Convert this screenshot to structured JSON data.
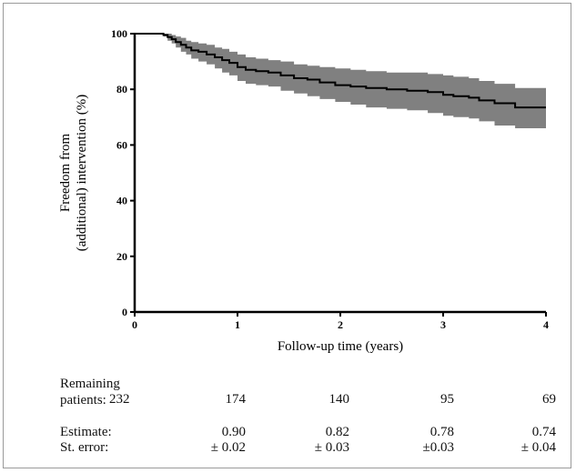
{
  "chart_data": {
    "type": "line",
    "title": "",
    "xlabel": "Follow-up time (years)",
    "ylabel_lines": [
      "Freedom from",
      "(additional) intervention (%)"
    ],
    "xlim": [
      0,
      4
    ],
    "ylim": [
      0,
      100
    ],
    "x_ticks": [
      "0",
      "1",
      "2",
      "3",
      "4"
    ],
    "y_ticks": [
      "0",
      "20",
      "40",
      "60",
      "80",
      "100"
    ],
    "grid": false,
    "series": [
      {
        "style": "step",
        "color": "#000000",
        "x": [
          0,
          0.25,
          0.28,
          0.32,
          0.36,
          0.4,
          0.45,
          0.5,
          0.55,
          0.62,
          0.7,
          0.78,
          0.85,
          0.92,
          1.0,
          1.08,
          1.18,
          1.3,
          1.42,
          1.55,
          1.68,
          1.8,
          1.95,
          2.1,
          2.25,
          2.45,
          2.65,
          2.85,
          3.0,
          3.1,
          3.25,
          3.35,
          3.5,
          3.7,
          4.0
        ],
        "y": [
          100,
          100,
          99.5,
          98.8,
          98,
          97,
          96,
          95,
          94,
          93.5,
          92.5,
          91.5,
          90.5,
          89.5,
          88,
          87,
          86.5,
          86,
          85,
          84,
          83.5,
          82.5,
          81.5,
          81,
          80.5,
          80,
          79.5,
          79,
          78,
          77.5,
          77,
          76,
          75,
          73.5,
          73.5
        ],
        "ci_lower": [
          100,
          100,
          99,
          97.5,
          96.5,
          95,
          93.5,
          92.5,
          91,
          90,
          89,
          87.5,
          86,
          85,
          83,
          82,
          81.5,
          81,
          79.5,
          78.5,
          77.5,
          76.5,
          75.5,
          74.5,
          73.5,
          73,
          72.5,
          71.5,
          70.5,
          70,
          69.5,
          68.5,
          67,
          66,
          66
        ],
        "ci_upper": [
          100,
          100,
          100,
          100,
          99.5,
          99,
          98.5,
          97.5,
          97,
          96.5,
          96,
          95,
          94.5,
          93.5,
          92.5,
          91.5,
          91,
          90.5,
          90,
          89,
          88.5,
          88,
          87.5,
          87,
          86.5,
          86,
          86,
          85.5,
          85,
          84.5,
          84,
          83,
          82,
          80.5,
          80.5
        ],
        "ci_color": "#808080"
      }
    ]
  },
  "table": {
    "remaining_label_line1": "Remaining",
    "remaining_label_line2": "patients:",
    "remaining": [
      "232",
      "174",
      "140",
      "95",
      "69"
    ],
    "estimate_label": "Estimate:",
    "estimates": [
      "0.90",
      "0.82",
      "0.78",
      "0.74"
    ],
    "sterror_label": "St. error:",
    "sterrors": [
      "± 0.02",
      "± 0.03",
      "±0.03",
      "± 0.04"
    ]
  }
}
